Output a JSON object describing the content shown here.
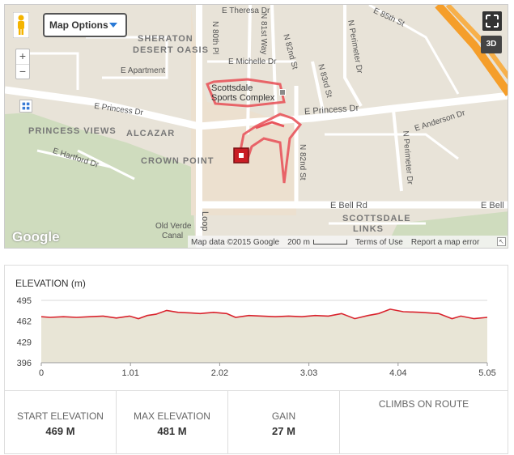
{
  "map": {
    "options_label": "Map Options",
    "three_d_label": "3D",
    "zoom_in": "+",
    "zoom_out": "−",
    "google_logo": "Google",
    "attribution": {
      "map_data": "Map data ©2015 Google",
      "scale": "200 m",
      "terms": "Terms of Use",
      "report": "Report a map error"
    },
    "poi": {
      "line1": "Scottsdale",
      "line2": "Sports Complex"
    },
    "streets": {
      "e_theresa": "E Theresa Dr",
      "n_80th": "N 80th Pl",
      "n_81st": "N 81st Way",
      "n_82nd_top": "N 82nd St",
      "n_85th": "E 85th St",
      "n_perimeter_top": "N Perimeter Dr",
      "e_michelle": "E Michelle Dr",
      "n_83rd": "N 83rd St",
      "e_apartment": "E Apartment",
      "e_princess_left": "E Princess Dr",
      "e_princess_right": "E Princess Dr",
      "e_anderson": "E Anderson Dr",
      "n_perimeter_bottom": "N Perimeter Dr",
      "e_hartford": "E Hartford Dr",
      "n_82nd_bottom": "N 82nd St",
      "e_bell_left": "E Bell Rd",
      "e_bell_right": "E Bell",
      "loop": "Loop",
      "old_verde": "Old Verde",
      "canal": "Canal"
    },
    "areas": {
      "sheraton": "SHERATON",
      "desert_oasis": "DESERT OASIS",
      "princess_views": "PRINCESS VIEWS",
      "alcazar": "ALCAZAR",
      "crown_point": "CROWN POINT",
      "scottsdale": "SCOTTSDALE",
      "links": "LINKS"
    }
  },
  "elevation": {
    "title": "ELEVATION (m)",
    "chart_data": {
      "type": "area",
      "ylabel": "",
      "y_ticks": [
        "495",
        "462",
        "429",
        "396"
      ],
      "x_ticks": [
        "0",
        "1.01",
        "2.02",
        "3.03",
        "4.04",
        "5.05"
      ],
      "ylim": [
        396,
        495
      ],
      "xlim": [
        0,
        5.05
      ],
      "series": [
        {
          "x": [
            0,
            0.1,
            0.25,
            0.4,
            0.55,
            0.7,
            0.85,
            1.0,
            1.1,
            1.2,
            1.3,
            1.42,
            1.55,
            1.7,
            1.8,
            1.95,
            2.1,
            2.2,
            2.35,
            2.5,
            2.65,
            2.8,
            2.95,
            3.1,
            3.25,
            3.4,
            3.55,
            3.7,
            3.82,
            3.95,
            4.1,
            4.3,
            4.5,
            4.65,
            4.75,
            4.9,
            5.05
          ],
          "y": [
            469,
            468,
            469,
            468,
            469,
            470,
            467,
            470,
            466,
            471,
            473,
            479,
            476,
            475,
            474,
            476,
            474,
            468,
            471,
            470,
            469,
            470,
            469,
            471,
            470,
            474,
            466,
            471,
            474,
            481,
            477,
            476,
            474,
            466,
            470,
            466,
            468
          ]
        }
      ],
      "colors": {
        "line": "#d9232d",
        "fill": "#e8e5d6",
        "grid": "#d8d8d8"
      }
    }
  },
  "stats": {
    "start": {
      "label": "START ELEVATION",
      "value": "469 M"
    },
    "max": {
      "label": "MAX ELEVATION",
      "value": "481 M"
    },
    "gain": {
      "label": "GAIN",
      "value": "27 M"
    },
    "climbs": {
      "label": "CLIMBS ON ROUTE"
    }
  }
}
